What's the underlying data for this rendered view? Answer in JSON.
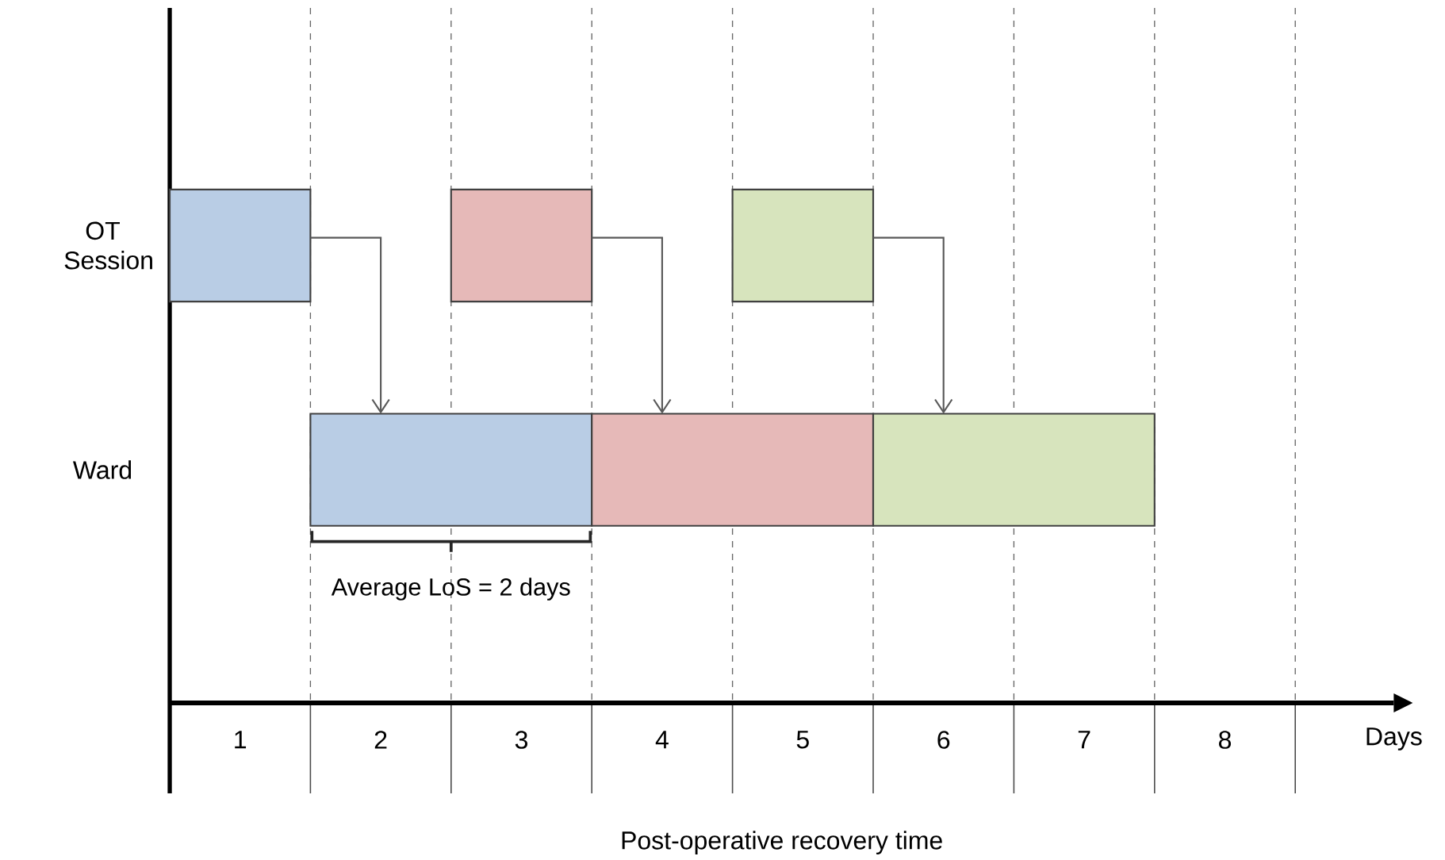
{
  "chart_data": {
    "type": "bar",
    "orientation": "horizontal",
    "categories": [
      "OT Session",
      "Ward"
    ],
    "series": [
      {
        "color": "#b9cde5",
        "base": [
          0,
          1
        ],
        "values": [
          1,
          2
        ]
      },
      {
        "color": "#e6b9b8",
        "base": [
          2,
          3
        ],
        "values": [
          1,
          2
        ]
      },
      {
        "color": "#d7e4bd",
        "base": [
          4,
          5
        ],
        "values": [
          1,
          2
        ]
      }
    ],
    "xlim": [
      0,
      8.7
    ],
    "xticks": [
      {
        "value": 1,
        "label": null
      },
      {
        "value": 2,
        "label": null
      },
      {
        "value": 3,
        "label": null
      },
      {
        "value": 4,
        "label": null
      },
      {
        "value": 5,
        "label": null
      },
      {
        "value": 6,
        "label": null
      },
      {
        "value": 7,
        "label": null
      },
      {
        "value": 8,
        "label": null
      },
      {
        "value": 0.5,
        "label": "1"
      },
      {
        "value": 1.5,
        "label": "2"
      },
      {
        "value": 2.5,
        "label": "3"
      },
      {
        "value": 3.5,
        "label": "4"
      },
      {
        "value": 4.5,
        "label": "5"
      },
      {
        "value": 5.5,
        "label": "6"
      },
      {
        "value": 6.5,
        "label": "7"
      },
      {
        "value": 7.5,
        "label": "8"
      }
    ],
    "grid": "x",
    "xlabel": "Post-operative recovery time",
    "annotations": [
      "Average LoS = 2 days",
      "Days"
    ]
  }
}
